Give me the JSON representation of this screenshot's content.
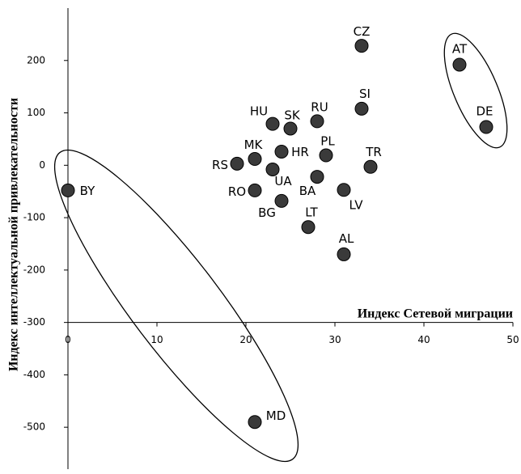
{
  "chart_data": {
    "type": "scatter",
    "xlabel": "Индекс Сетевой миграции",
    "ylabel": "Индекс интеллектуальной привлекательности",
    "labels": [
      "CZ",
      "AT",
      "DE",
      "SI",
      "RU",
      "HU",
      "SK",
      "HR",
      "MK",
      "PL",
      "RS",
      "TR",
      "UA",
      "BA",
      "BY",
      "RO",
      "LV",
      "BG",
      "LT",
      "AL",
      "MD"
    ],
    "x": [
      33,
      44,
      47,
      33,
      28,
      23,
      25,
      24,
      21,
      29,
      19,
      34,
      23,
      28,
      0,
      21,
      31,
      24,
      27,
      31,
      21
    ],
    "values": [
      228,
      192,
      73,
      108,
      84,
      79,
      70,
      26,
      12,
      19,
      3,
      -3,
      -8,
      -22,
      -48,
      -48,
      -47,
      -68,
      -118,
      -170,
      -490
    ],
    "color": "#3a3a3a",
    "xlim": [
      0,
      50
    ],
    "xticks": [
      0,
      10,
      20,
      30,
      40,
      50
    ],
    "ylim": [
      -580,
      300
    ],
    "yticks": [
      200,
      100,
      0,
      -100,
      -200,
      -300,
      -400,
      -500
    ],
    "x_axis_at": -300
  }
}
